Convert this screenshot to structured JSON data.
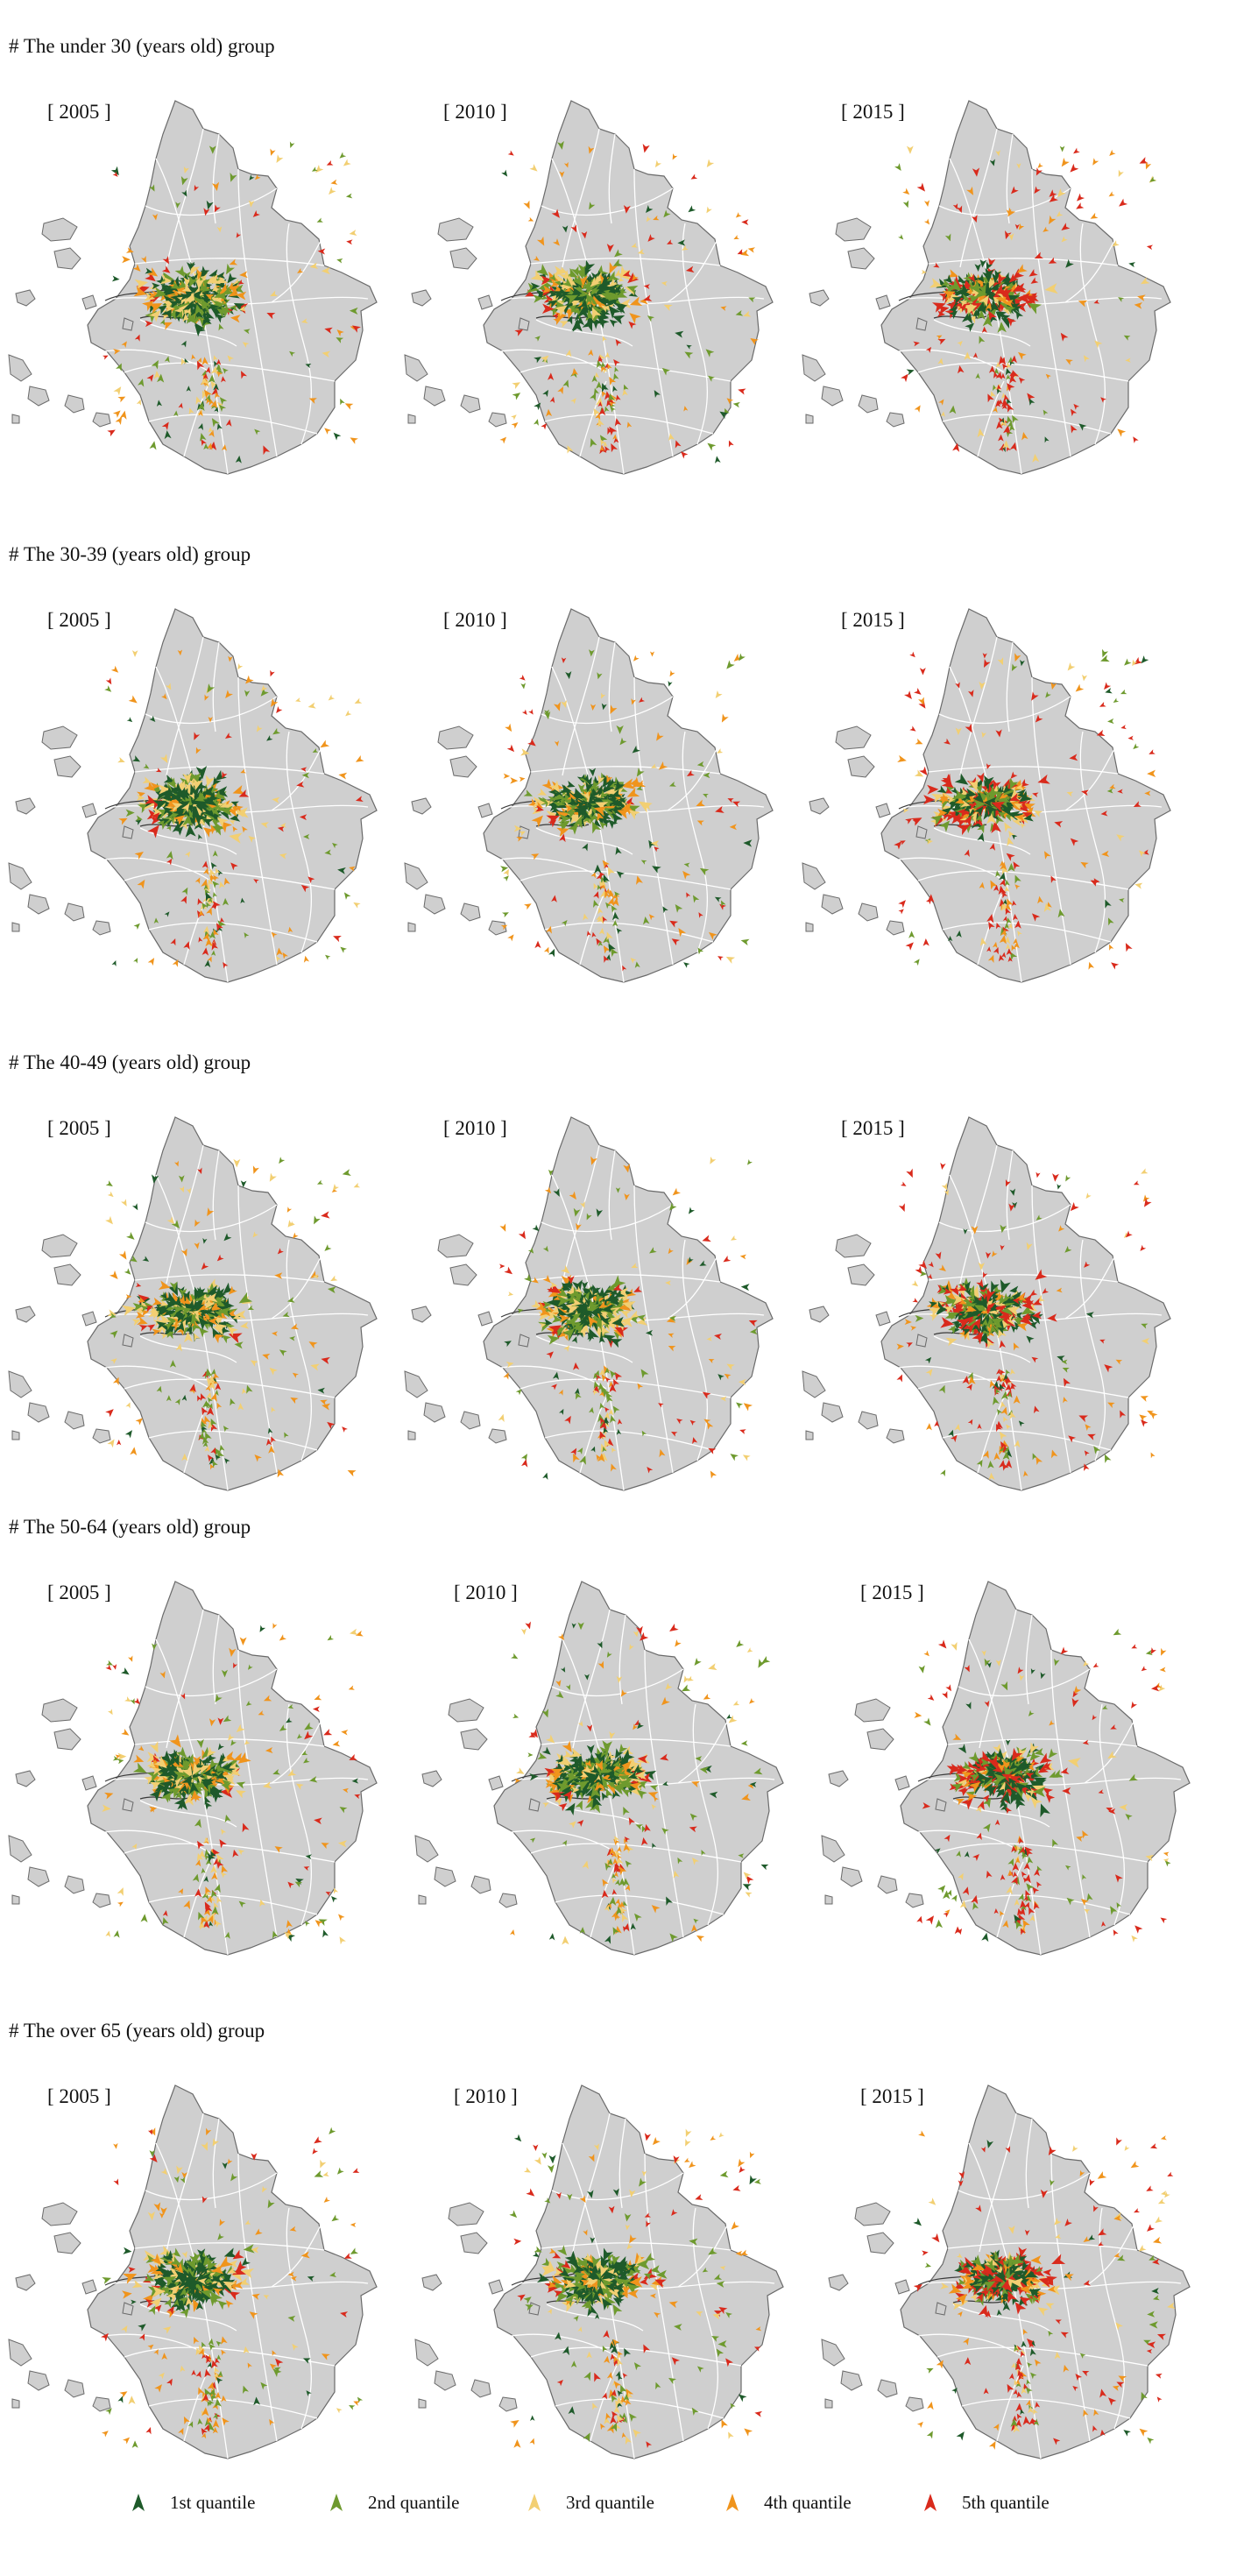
{
  "figure": {
    "groups": [
      {
        "title": "# The under 30 (years old) group",
        "years": [
          "[ 2005 ]",
          "[ 2010 ]",
          "[ 2015 ]"
        ]
      },
      {
        "title": "# The 30-39 (years old) group",
        "years": [
          "[ 2005 ]",
          "[ 2010 ]",
          "[ 2015 ]"
        ]
      },
      {
        "title": "# The 40-49 (years old) group",
        "years": [
          "[ 2005 ]",
          "[ 2010 ]",
          "[ 2015 ]"
        ]
      },
      {
        "title": "# The 50-64 (years old) group",
        "years": [
          "[ 2005 ]",
          "[ 2010 ]",
          "[ 2015 ]"
        ]
      },
      {
        "title": "# The over 65 (years old) group",
        "years": [
          "[ 2005 ]",
          "[ 2010 ]",
          "[ 2015 ]"
        ]
      }
    ],
    "legend": [
      {
        "label": "1st quantile",
        "color": "#1e5a2a"
      },
      {
        "label": "2nd quantile",
        "color": "#6e9a2e"
      },
      {
        "label": "3rd quantile",
        "color": "#f2cf72"
      },
      {
        "label": "4th quantile",
        "color": "#f0941c"
      },
      {
        "label": "5th quantile",
        "color": "#d92a1c"
      }
    ],
    "map_colors": {
      "land": "#cfcfcf",
      "boundary": "#ffffff",
      "outline": "#6a6a6a",
      "core_line": "#3a3a3a"
    },
    "icon": "arrow-marker-icon"
  }
}
